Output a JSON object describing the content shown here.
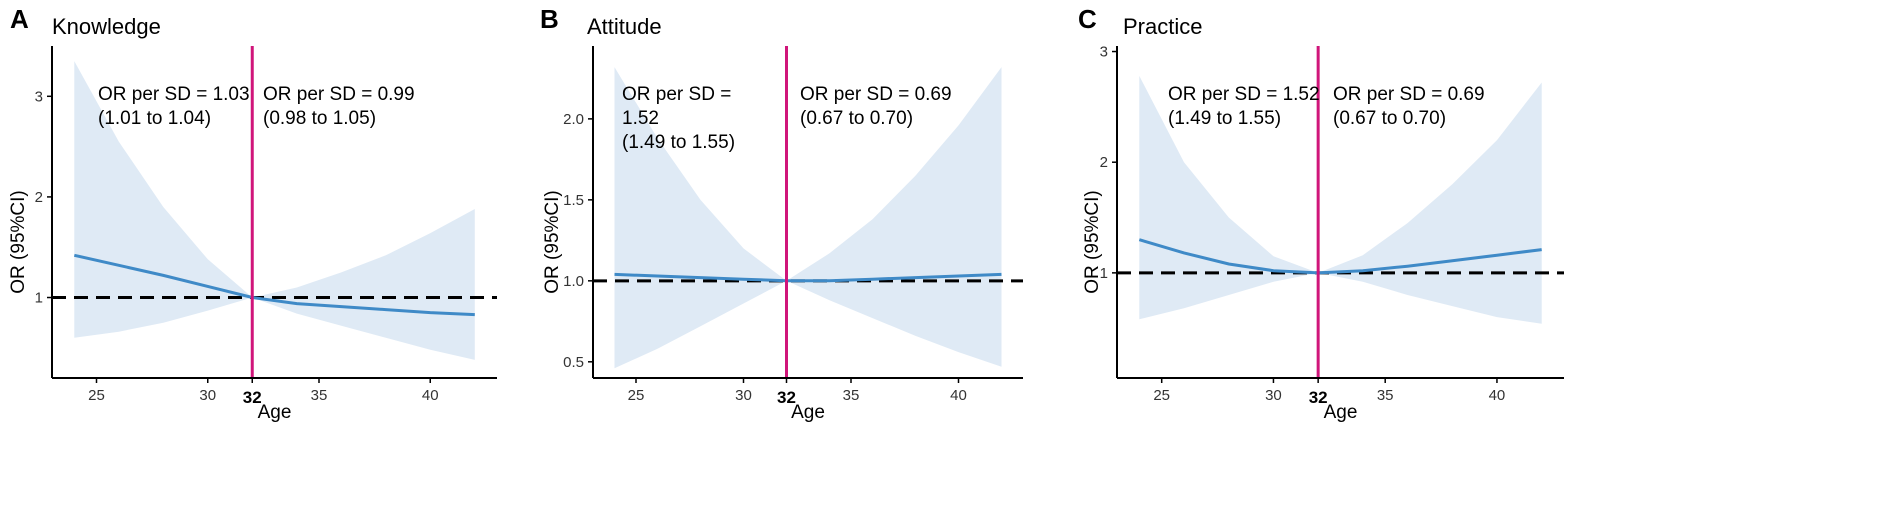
{
  "chart_data": [
    {
      "type": "line",
      "panel_letter": "A",
      "title": "Knowledge",
      "xlabel": "Age",
      "ylabel": "OR (95%CI)",
      "xlim": [
        23,
        43
      ],
      "ylim": [
        0.2,
        3.5
      ],
      "x_ticks": [
        25,
        30,
        35,
        40
      ],
      "y_ticks": [
        1,
        2,
        3
      ],
      "y_tick_labels": [
        "1",
        "2",
        "3"
      ],
      "reference_line": 1,
      "cutoff_age": 32,
      "cutoff_label": "32",
      "x": [
        24,
        26,
        28,
        30,
        32,
        34,
        36,
        38,
        40,
        42
      ],
      "estimate": [
        1.42,
        1.32,
        1.22,
        1.11,
        1.0,
        0.94,
        0.91,
        0.88,
        0.85,
        0.83
      ],
      "lower": [
        0.6,
        0.66,
        0.75,
        0.87,
        1.0,
        0.84,
        0.72,
        0.6,
        0.48,
        0.38
      ],
      "upper": [
        3.35,
        2.55,
        1.9,
        1.38,
        1.0,
        1.1,
        1.25,
        1.42,
        1.64,
        1.88
      ],
      "annotations": {
        "left": [
          "OR per SD = 1.03",
          "(1.01 to 1.04)"
        ],
        "right": [
          "OR per SD = 0.99",
          "(0.98 to 1.05)"
        ]
      }
    },
    {
      "type": "line",
      "panel_letter": "B",
      "title": "Attitude",
      "xlabel": "Age",
      "ylabel": "OR (95%CI)",
      "xlim": [
        23,
        43
      ],
      "ylim": [
        0.4,
        2.45
      ],
      "x_ticks": [
        25,
        30,
        35,
        40
      ],
      "y_ticks": [
        0.5,
        1.0,
        1.5,
        2.0
      ],
      "y_tick_labels": [
        "0.5",
        "1.0",
        "1.5",
        "2.0"
      ],
      "reference_line": 1,
      "cutoff_age": 32,
      "cutoff_label": "32",
      "x": [
        24,
        26,
        28,
        30,
        32,
        34,
        36,
        38,
        40,
        42
      ],
      "estimate": [
        1.04,
        1.03,
        1.02,
        1.01,
        1.0,
        1.0,
        1.01,
        1.02,
        1.03,
        1.04
      ],
      "lower": [
        0.46,
        0.58,
        0.72,
        0.86,
        1.0,
        0.88,
        0.77,
        0.66,
        0.56,
        0.47
      ],
      "upper": [
        2.32,
        1.88,
        1.5,
        1.2,
        1.0,
        1.17,
        1.38,
        1.65,
        1.96,
        2.32
      ],
      "annotations": {
        "left": [
          "OR per SD =",
          "1.52",
          "(1.49 to 1.55)"
        ],
        "right": [
          "OR per SD = 0.69",
          "(0.67 to 0.70)"
        ]
      }
    },
    {
      "type": "line",
      "panel_letter": "C",
      "title": "Practice",
      "xlabel": "Age",
      "ylabel": "OR (95%CI)",
      "xlim": [
        23,
        43
      ],
      "ylim": [
        0.05,
        3.05
      ],
      "x_ticks": [
        25,
        30,
        35,
        40
      ],
      "y_ticks": [
        1,
        2,
        3
      ],
      "y_tick_labels": [
        "1",
        "2",
        "3"
      ],
      "reference_line": 1,
      "cutoff_age": 32,
      "cutoff_label": "32",
      "x": [
        24,
        26,
        28,
        30,
        32,
        34,
        36,
        38,
        40,
        42
      ],
      "estimate": [
        1.3,
        1.18,
        1.08,
        1.02,
        1.0,
        1.02,
        1.06,
        1.11,
        1.16,
        1.21
      ],
      "lower": [
        0.58,
        0.68,
        0.8,
        0.92,
        1.0,
        0.92,
        0.8,
        0.7,
        0.6,
        0.54
      ],
      "upper": [
        2.78,
        2.0,
        1.5,
        1.15,
        1.0,
        1.16,
        1.45,
        1.8,
        2.2,
        2.72
      ],
      "annotations": {
        "left": [
          "OR per SD = 1.52",
          "(1.49 to 1.55)"
        ],
        "right": [
          "OR per SD = 0.69",
          "(0.67 to 0.70)"
        ]
      }
    }
  ],
  "colors": {
    "ci_band": "#dfeaf5",
    "estimate_line": "#3f8ac7",
    "cutoff_line": "#d0157a",
    "reference_line": "#000000",
    "axis": "#000000"
  }
}
